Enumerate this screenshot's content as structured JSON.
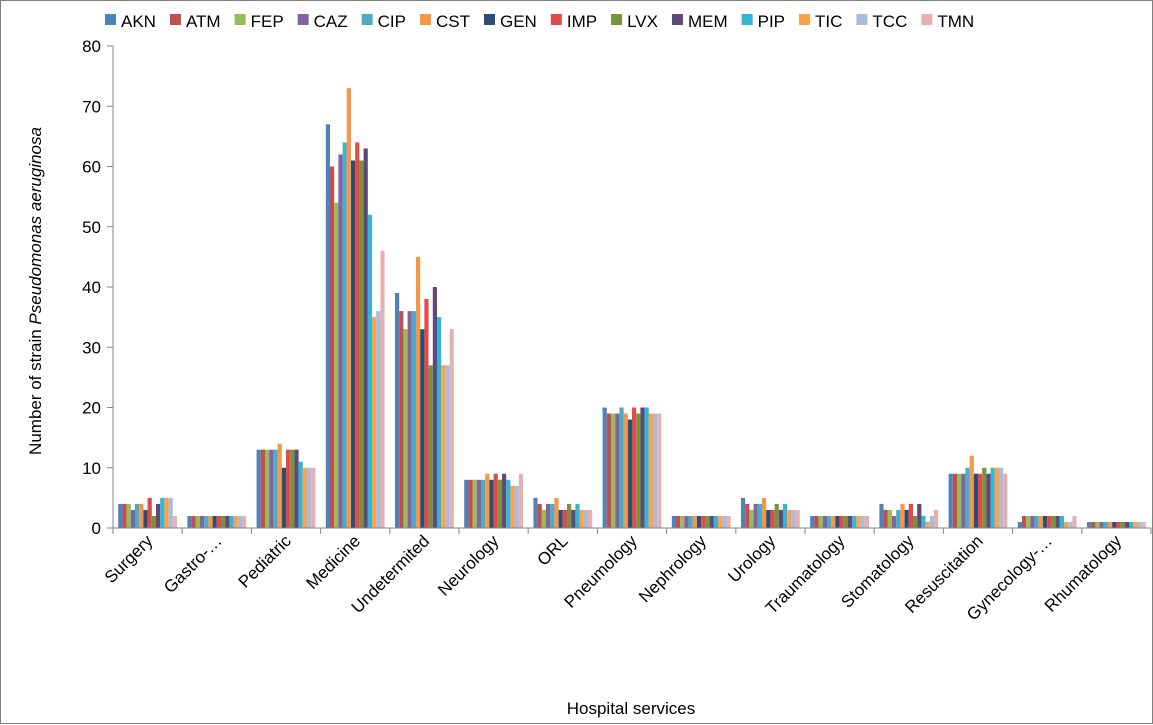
{
  "chart_data": {
    "type": "bar",
    "title": "",
    "xlabel": "Hospital services",
    "ylabel_parts": [
      "Number of strain ",
      "Pseudomonas aeruginosa"
    ],
    "ylim": [
      0,
      80
    ],
    "yticks": [
      0,
      10,
      20,
      30,
      40,
      50,
      60,
      70,
      80
    ],
    "grid": false,
    "legend_position": "top",
    "categories": [
      "Surgery",
      "Gastro-…",
      "Pediatric",
      "Medicine",
      "Undetermited",
      "Neurology",
      "ORL",
      "Pneumology",
      "Nephrology",
      "Urology",
      "Traumatology",
      "Stomatology",
      "Resuscitation",
      "Gynecology-…",
      "Rhumatology"
    ],
    "series": [
      {
        "name": "AKN",
        "color": "#4F81BD",
        "values": [
          4,
          2,
          13,
          67,
          39,
          8,
          5,
          20,
          2,
          5,
          2,
          4,
          9,
          1,
          1
        ]
      },
      {
        "name": "ATM",
        "color": "#C0504D",
        "values": [
          4,
          2,
          13,
          60,
          36,
          8,
          4,
          19,
          2,
          4,
          2,
          3,
          9,
          2,
          1
        ]
      },
      {
        "name": "FEP",
        "color": "#9BBB59",
        "values": [
          4,
          2,
          13,
          54,
          33,
          8,
          3,
          19,
          2,
          3,
          2,
          3,
          9,
          2,
          1
        ]
      },
      {
        "name": "CAZ",
        "color": "#8064A2",
        "values": [
          3,
          2,
          13,
          62,
          36,
          8,
          4,
          19,
          2,
          4,
          2,
          2,
          9,
          2,
          1
        ]
      },
      {
        "name": "CIP",
        "color": "#4BACC6",
        "values": [
          4,
          2,
          13,
          64,
          36,
          8,
          4,
          20,
          2,
          4,
          2,
          3,
          10,
          2,
          1
        ]
      },
      {
        "name": "CST",
        "color": "#F79646",
        "values": [
          4,
          2,
          14,
          73,
          45,
          9,
          5,
          19,
          2,
          5,
          2,
          4,
          12,
          2,
          1
        ]
      },
      {
        "name": "GEN",
        "color": "#2C4D75",
        "values": [
          3,
          2,
          10,
          61,
          33,
          8,
          3,
          18,
          2,
          3,
          2,
          3,
          9,
          2,
          1
        ]
      },
      {
        "name": "IMP",
        "color": "#E24A4A",
        "values": [
          5,
          2,
          13,
          64,
          38,
          9,
          3,
          20,
          2,
          3,
          2,
          4,
          9,
          2,
          1
        ]
      },
      {
        "name": "LVX",
        "color": "#77933C",
        "values": [
          2,
          2,
          13,
          61,
          27,
          8,
          4,
          19,
          2,
          4,
          2,
          2,
          10,
          2,
          1
        ]
      },
      {
        "name": "MEM",
        "color": "#5F497A",
        "values": [
          4,
          2,
          13,
          63,
          40,
          9,
          3,
          20,
          2,
          3,
          2,
          4,
          9,
          2,
          1
        ]
      },
      {
        "name": "PIP",
        "color": "#31B6D6",
        "values": [
          5,
          2,
          11,
          52,
          35,
          8,
          4,
          20,
          2,
          4,
          2,
          2,
          10,
          2,
          1
        ]
      },
      {
        "name": "TIC",
        "color": "#FFA04A",
        "values": [
          5,
          2,
          10,
          35,
          27,
          7,
          3,
          19,
          2,
          3,
          2,
          1,
          10,
          1,
          1
        ]
      },
      {
        "name": "TCC",
        "color": "#A9BCDD",
        "values": [
          5,
          2,
          10,
          36,
          27,
          7,
          3,
          19,
          2,
          3,
          2,
          2,
          10,
          1,
          1
        ]
      },
      {
        "name": "TMN",
        "color": "#E6B0B0",
        "values": [
          2,
          2,
          10,
          46,
          33,
          9,
          3,
          19,
          2,
          3,
          2,
          3,
          9,
          2,
          1
        ]
      }
    ]
  }
}
